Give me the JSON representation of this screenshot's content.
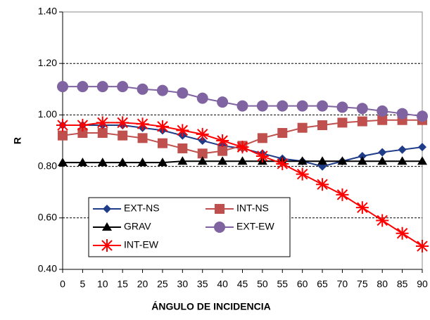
{
  "chart_data": {
    "type": "line",
    "x_label": "ÁNGULO DE INCIDENCIA",
    "y_label": "R",
    "x": [
      0,
      5,
      10,
      15,
      20,
      25,
      30,
      35,
      40,
      45,
      50,
      55,
      60,
      65,
      70,
      75,
      80,
      85,
      90
    ],
    "xlim": [
      0,
      90
    ],
    "xticks": [
      0,
      5,
      10,
      15,
      20,
      25,
      30,
      35,
      40,
      45,
      50,
      55,
      60,
      65,
      70,
      75,
      80,
      85,
      90
    ],
    "ylim": [
      0.4,
      1.4
    ],
    "yticks": [
      {
        "value": 0.4,
        "label": "0.40"
      },
      {
        "value": 0.6,
        "label": "0.60"
      },
      {
        "value": 0.8,
        "label": "0.80"
      },
      {
        "value": 1.0,
        "label": "1.00"
      },
      {
        "value": 1.2,
        "label": "1.20"
      },
      {
        "value": 1.4,
        "label": "1.40"
      }
    ],
    "grid": true,
    "series": [
      {
        "name": "EXT-NS",
        "color": "#1f3c88",
        "marker": "diamond",
        "values": [
          0.96,
          0.96,
          0.96,
          0.96,
          0.95,
          0.94,
          0.92,
          0.9,
          0.88,
          0.87,
          0.85,
          0.83,
          0.82,
          0.8,
          0.82,
          0.84,
          0.855,
          0.865,
          0.875
        ]
      },
      {
        "name": "INT-NS",
        "color": "#c0504d",
        "marker": "square",
        "values": [
          0.92,
          0.93,
          0.93,
          0.92,
          0.91,
          0.89,
          0.87,
          0.85,
          0.86,
          0.88,
          0.91,
          0.93,
          0.95,
          0.96,
          0.97,
          0.975,
          0.98,
          0.98,
          0.98
        ]
      },
      {
        "name": "GRAV",
        "color": "#000000",
        "marker": "triangle",
        "values": [
          0.815,
          0.815,
          0.815,
          0.815,
          0.815,
          0.815,
          0.82,
          0.82,
          0.82,
          0.82,
          0.82,
          0.82,
          0.82,
          0.82,
          0.82,
          0.82,
          0.82,
          0.82,
          0.82
        ]
      },
      {
        "name": "EXT-EW",
        "color": "#8064a2",
        "marker": "circle",
        "values": [
          1.11,
          1.11,
          1.11,
          1.11,
          1.1,
          1.095,
          1.085,
          1.065,
          1.05,
          1.035,
          1.035,
          1.035,
          1.035,
          1.035,
          1.03,
          1.025,
          1.015,
          1.005,
          0.995
        ]
      },
      {
        "name": "INT-EW",
        "color": "#ff0000",
        "marker": "asterisk",
        "values": [
          0.96,
          0.96,
          0.97,
          0.97,
          0.965,
          0.955,
          0.94,
          0.925,
          0.9,
          0.875,
          0.84,
          0.81,
          0.77,
          0.73,
          0.69,
          0.64,
          0.59,
          0.54,
          0.49
        ]
      }
    ]
  }
}
